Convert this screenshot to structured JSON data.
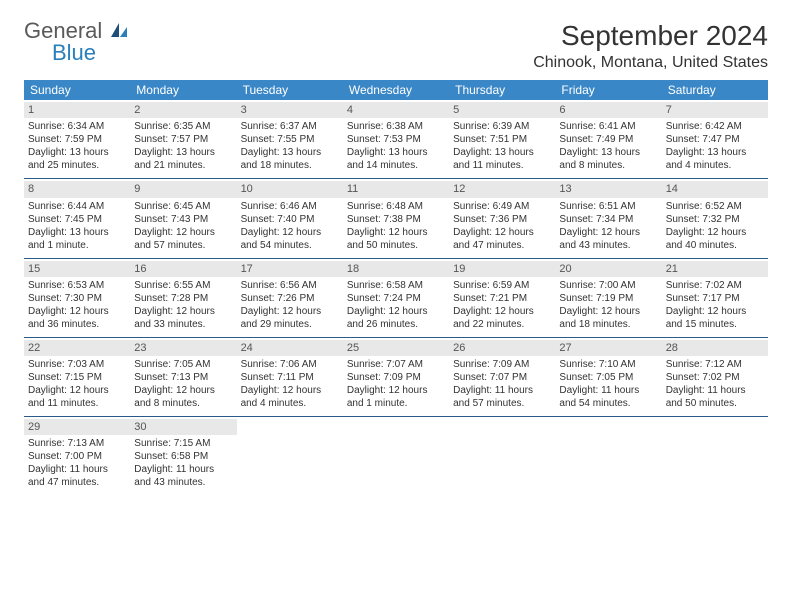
{
  "logo": {
    "text1": "General",
    "text2": "Blue"
  },
  "title": "September 2024",
  "location": "Chinook, Montana, United States",
  "colors": {
    "header_bg": "#3a87c7",
    "header_text": "#ffffff",
    "daynum_bg": "#e8e8e8",
    "border": "#2a5a8a",
    "logo_gray": "#5a5a5a",
    "logo_blue": "#2a7fba"
  },
  "day_names": [
    "Sunday",
    "Monday",
    "Tuesday",
    "Wednesday",
    "Thursday",
    "Friday",
    "Saturday"
  ],
  "weeks": [
    [
      {
        "n": "1",
        "sr": "Sunrise: 6:34 AM",
        "ss": "Sunset: 7:59 PM",
        "dl": "Daylight: 13 hours and 25 minutes."
      },
      {
        "n": "2",
        "sr": "Sunrise: 6:35 AM",
        "ss": "Sunset: 7:57 PM",
        "dl": "Daylight: 13 hours and 21 minutes."
      },
      {
        "n": "3",
        "sr": "Sunrise: 6:37 AM",
        "ss": "Sunset: 7:55 PM",
        "dl": "Daylight: 13 hours and 18 minutes."
      },
      {
        "n": "4",
        "sr": "Sunrise: 6:38 AM",
        "ss": "Sunset: 7:53 PM",
        "dl": "Daylight: 13 hours and 14 minutes."
      },
      {
        "n": "5",
        "sr": "Sunrise: 6:39 AM",
        "ss": "Sunset: 7:51 PM",
        "dl": "Daylight: 13 hours and 11 minutes."
      },
      {
        "n": "6",
        "sr": "Sunrise: 6:41 AM",
        "ss": "Sunset: 7:49 PM",
        "dl": "Daylight: 13 hours and 8 minutes."
      },
      {
        "n": "7",
        "sr": "Sunrise: 6:42 AM",
        "ss": "Sunset: 7:47 PM",
        "dl": "Daylight: 13 hours and 4 minutes."
      }
    ],
    [
      {
        "n": "8",
        "sr": "Sunrise: 6:44 AM",
        "ss": "Sunset: 7:45 PM",
        "dl": "Daylight: 13 hours and 1 minute."
      },
      {
        "n": "9",
        "sr": "Sunrise: 6:45 AM",
        "ss": "Sunset: 7:43 PM",
        "dl": "Daylight: 12 hours and 57 minutes."
      },
      {
        "n": "10",
        "sr": "Sunrise: 6:46 AM",
        "ss": "Sunset: 7:40 PM",
        "dl": "Daylight: 12 hours and 54 minutes."
      },
      {
        "n": "11",
        "sr": "Sunrise: 6:48 AM",
        "ss": "Sunset: 7:38 PM",
        "dl": "Daylight: 12 hours and 50 minutes."
      },
      {
        "n": "12",
        "sr": "Sunrise: 6:49 AM",
        "ss": "Sunset: 7:36 PM",
        "dl": "Daylight: 12 hours and 47 minutes."
      },
      {
        "n": "13",
        "sr": "Sunrise: 6:51 AM",
        "ss": "Sunset: 7:34 PM",
        "dl": "Daylight: 12 hours and 43 minutes."
      },
      {
        "n": "14",
        "sr": "Sunrise: 6:52 AM",
        "ss": "Sunset: 7:32 PM",
        "dl": "Daylight: 12 hours and 40 minutes."
      }
    ],
    [
      {
        "n": "15",
        "sr": "Sunrise: 6:53 AM",
        "ss": "Sunset: 7:30 PM",
        "dl": "Daylight: 12 hours and 36 minutes."
      },
      {
        "n": "16",
        "sr": "Sunrise: 6:55 AM",
        "ss": "Sunset: 7:28 PM",
        "dl": "Daylight: 12 hours and 33 minutes."
      },
      {
        "n": "17",
        "sr": "Sunrise: 6:56 AM",
        "ss": "Sunset: 7:26 PM",
        "dl": "Daylight: 12 hours and 29 minutes."
      },
      {
        "n": "18",
        "sr": "Sunrise: 6:58 AM",
        "ss": "Sunset: 7:24 PM",
        "dl": "Daylight: 12 hours and 26 minutes."
      },
      {
        "n": "19",
        "sr": "Sunrise: 6:59 AM",
        "ss": "Sunset: 7:21 PM",
        "dl": "Daylight: 12 hours and 22 minutes."
      },
      {
        "n": "20",
        "sr": "Sunrise: 7:00 AM",
        "ss": "Sunset: 7:19 PM",
        "dl": "Daylight: 12 hours and 18 minutes."
      },
      {
        "n": "21",
        "sr": "Sunrise: 7:02 AM",
        "ss": "Sunset: 7:17 PM",
        "dl": "Daylight: 12 hours and 15 minutes."
      }
    ],
    [
      {
        "n": "22",
        "sr": "Sunrise: 7:03 AM",
        "ss": "Sunset: 7:15 PM",
        "dl": "Daylight: 12 hours and 11 minutes."
      },
      {
        "n": "23",
        "sr": "Sunrise: 7:05 AM",
        "ss": "Sunset: 7:13 PM",
        "dl": "Daylight: 12 hours and 8 minutes."
      },
      {
        "n": "24",
        "sr": "Sunrise: 7:06 AM",
        "ss": "Sunset: 7:11 PM",
        "dl": "Daylight: 12 hours and 4 minutes."
      },
      {
        "n": "25",
        "sr": "Sunrise: 7:07 AM",
        "ss": "Sunset: 7:09 PM",
        "dl": "Daylight: 12 hours and 1 minute."
      },
      {
        "n": "26",
        "sr": "Sunrise: 7:09 AM",
        "ss": "Sunset: 7:07 PM",
        "dl": "Daylight: 11 hours and 57 minutes."
      },
      {
        "n": "27",
        "sr": "Sunrise: 7:10 AM",
        "ss": "Sunset: 7:05 PM",
        "dl": "Daylight: 11 hours and 54 minutes."
      },
      {
        "n": "28",
        "sr": "Sunrise: 7:12 AM",
        "ss": "Sunset: 7:02 PM",
        "dl": "Daylight: 11 hours and 50 minutes."
      }
    ],
    [
      {
        "n": "29",
        "sr": "Sunrise: 7:13 AM",
        "ss": "Sunset: 7:00 PM",
        "dl": "Daylight: 11 hours and 47 minutes."
      },
      {
        "n": "30",
        "sr": "Sunrise: 7:15 AM",
        "ss": "Sunset: 6:58 PM",
        "dl": "Daylight: 11 hours and 43 minutes."
      },
      null,
      null,
      null,
      null,
      null
    ]
  ]
}
